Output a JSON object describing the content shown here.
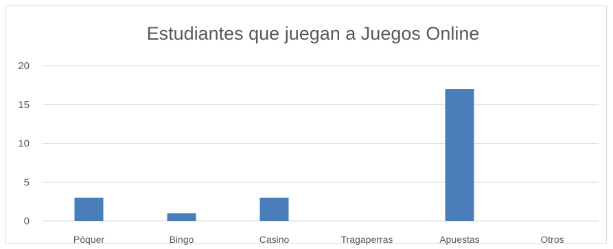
{
  "chart_data": {
    "type": "bar",
    "title": "Estudiantes que juegan a Juegos Online",
    "xlabel": "",
    "ylabel": "",
    "categories": [
      "Póquer",
      "Bingo",
      "Casino",
      "Tragaperras",
      "Apuestas",
      "Otros"
    ],
    "values": [
      3,
      1,
      3,
      0,
      17,
      0
    ],
    "ylim": [
      0,
      20
    ],
    "yticks": [
      0,
      5,
      10,
      15,
      20
    ],
    "grid": true,
    "legend": "none",
    "colors": {
      "bar": "#4a7ebb",
      "grid": "#d9d9d9",
      "text": "#595959"
    }
  }
}
